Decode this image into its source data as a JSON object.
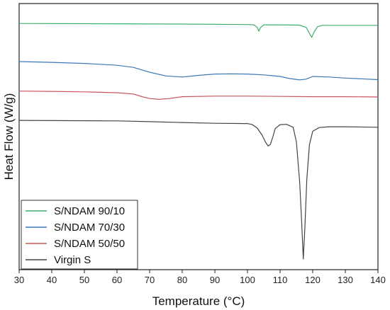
{
  "chart_data": {
    "type": "line",
    "xlabel": "Temperature (°C)",
    "ylabel": "Heat Flow (W/g)",
    "xlim": [
      30,
      140
    ],
    "xticks": [
      "30",
      "40",
      "50",
      "60",
      "70",
      "80",
      "90",
      "100",
      "110",
      "120",
      "130",
      "140"
    ],
    "grid": false,
    "legend_position": "bottom-left",
    "y_tick_labels_shown": false,
    "series": [
      {
        "name": "S/NDAM 90/10",
        "color": "#3fae6b",
        "points": [
          [
            30,
            0.925
          ],
          [
            60,
            0.924
          ],
          [
            80,
            0.923
          ],
          [
            100,
            0.921
          ],
          [
            102,
            0.92
          ],
          [
            103,
            0.91
          ],
          [
            103.5,
            0.896
          ],
          [
            104,
            0.91
          ],
          [
            105,
            0.92
          ],
          [
            110,
            0.92
          ],
          [
            116,
            0.919
          ],
          [
            118,
            0.91
          ],
          [
            119,
            0.888
          ],
          [
            119.7,
            0.873
          ],
          [
            120.5,
            0.895
          ],
          [
            121.5,
            0.913
          ],
          [
            123,
            0.918
          ],
          [
            130,
            0.918
          ],
          [
            140,
            0.918
          ]
        ]
      },
      {
        "name": "S/NDAM 70/30",
        "color": "#3c78b8",
        "points": [
          [
            30,
            0.782
          ],
          [
            40,
            0.779
          ],
          [
            50,
            0.775
          ],
          [
            60,
            0.768
          ],
          [
            65,
            0.76
          ],
          [
            70,
            0.742
          ],
          [
            75,
            0.728
          ],
          [
            80,
            0.724
          ],
          [
            85,
            0.73
          ],
          [
            90,
            0.735
          ],
          [
            95,
            0.736
          ],
          [
            100,
            0.735
          ],
          [
            105,
            0.732
          ],
          [
            110,
            0.726
          ],
          [
            113,
            0.718
          ],
          [
            116,
            0.713
          ],
          [
            118,
            0.716
          ],
          [
            120,
            0.726
          ],
          [
            125,
            0.724
          ],
          [
            130,
            0.72
          ],
          [
            140,
            0.714
          ]
        ]
      },
      {
        "name": "S/NDAM 50/50",
        "color": "#c8565c",
        "points": [
          [
            30,
            0.671
          ],
          [
            40,
            0.67
          ],
          [
            50,
            0.668
          ],
          [
            60,
            0.665
          ],
          [
            65,
            0.66
          ],
          [
            68,
            0.649
          ],
          [
            70,
            0.643
          ],
          [
            73,
            0.64
          ],
          [
            76,
            0.643
          ],
          [
            80,
            0.65
          ],
          [
            90,
            0.652
          ],
          [
            100,
            0.652
          ],
          [
            110,
            0.651
          ],
          [
            120,
            0.65
          ],
          [
            130,
            0.65
          ],
          [
            140,
            0.649
          ]
        ]
      },
      {
        "name": "Virgin S",
        "color": "#444444",
        "points": [
          [
            30,
            0.561
          ],
          [
            60,
            0.559
          ],
          [
            70,
            0.556
          ],
          [
            80,
            0.553
          ],
          [
            90,
            0.55
          ],
          [
            100,
            0.549
          ],
          [
            101.5,
            0.545
          ],
          [
            103,
            0.532
          ],
          [
            104.5,
            0.505
          ],
          [
            105.5,
            0.48
          ],
          [
            106.3,
            0.465
          ],
          [
            107,
            0.47
          ],
          [
            107.8,
            0.5
          ],
          [
            108.5,
            0.53
          ],
          [
            110,
            0.545
          ],
          [
            112,
            0.546
          ],
          [
            114,
            0.535
          ],
          [
            115,
            0.48
          ],
          [
            116,
            0.33
          ],
          [
            116.6,
            0.18
          ],
          [
            117.1,
            0.04
          ],
          [
            117.6,
            0.16
          ],
          [
            118.2,
            0.34
          ],
          [
            119,
            0.47
          ],
          [
            120,
            0.52
          ],
          [
            122,
            0.534
          ],
          [
            125,
            0.537
          ],
          [
            130,
            0.537
          ],
          [
            140,
            0.535
          ]
        ]
      }
    ]
  }
}
